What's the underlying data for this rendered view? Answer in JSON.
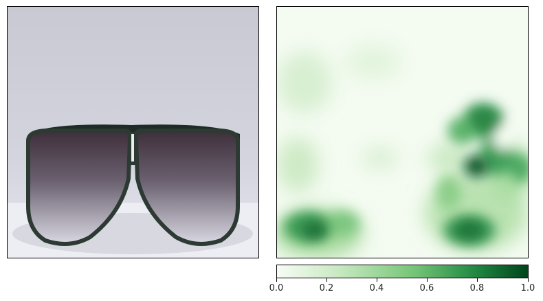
{
  "figure": {
    "left_panel": {
      "content": "photo of sunglasses"
    },
    "right_panel": {
      "content": "saliency heatmap",
      "colormap": "Greens"
    }
  },
  "colorbar": {
    "colormap": "Greens",
    "range": [
      0.0,
      1.0
    ],
    "ticks": [
      "0.0",
      "0.2",
      "0.4",
      "0.6",
      "0.8",
      "1.0"
    ],
    "colors": {
      "low": "#f7fcf5",
      "mid": "#74c476",
      "high": "#00441b"
    }
  }
}
